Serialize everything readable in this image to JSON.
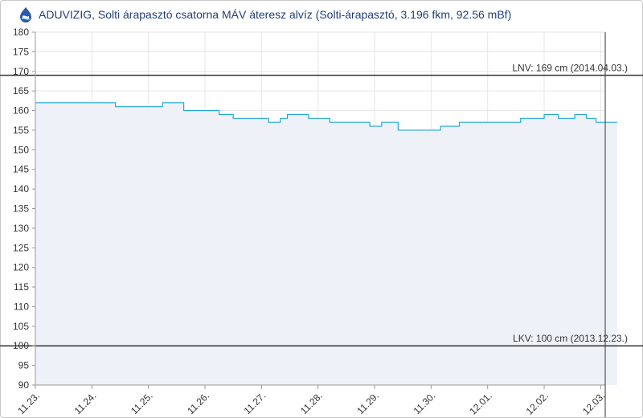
{
  "header": {
    "logo_icon": "aduvizig-water-drop-icon",
    "title": "ADUVIZIG, Solti árapasztó csatorna MÁV áteresz alvíz (Solti-árapasztó, 3.196 fkm, 92.56 mBf)"
  },
  "chart_data": {
    "type": "line",
    "title": "ADUVIZIG, Solti árapasztó csatorna MÁV áteresz alvíz (Solti-árapasztó, 3.196 fkm, 92.56 mBf)",
    "xlabel": "",
    "ylabel": "",
    "ylim": [
      90,
      180
    ],
    "yticks": [
      90,
      95,
      100,
      105,
      110,
      115,
      120,
      125,
      130,
      135,
      140,
      145,
      150,
      155,
      160,
      165,
      170,
      175,
      180
    ],
    "xlim": [
      "11.23.",
      "12.03.+0.08"
    ],
    "xticks": [
      "11.23.",
      "11.24.",
      "11.25.",
      "11.26.",
      "11.27.",
      "11.28.",
      "11.29.",
      "11.30.",
      "12.01.",
      "12.02.",
      "12.03."
    ],
    "grid": true,
    "colors": {
      "line": "#1fa8d6",
      "area": "#eef1f7",
      "ref_line": "#333333",
      "grid": "#e6e6e6"
    },
    "reference_lines": [
      {
        "value": 169,
        "label": "LNV: 169 cm (2014.04.03.)"
      },
      {
        "value": 100,
        "label": "LKV: 100 cm (2013.12.23.)"
      }
    ],
    "series": [
      {
        "name": "",
        "x": [
          "11.23.",
          "11.24. 06:00",
          "11.24. 10:00",
          "11.25. 06:00",
          "11.25. 09:00",
          "11.25. 15:00",
          "11.26. 06:00",
          "11.26. 12:00",
          "11.27. 03:00",
          "11.27. 08:00",
          "11.27. 11:00",
          "11.27. 20:00",
          "11.28. 05:00",
          "11.28. 16:00",
          "11.28. 22:00",
          "11.29. 03:00",
          "11.29. 10:00",
          "11.30. 04:00",
          "11.30. 12:00",
          "12.01. 06:00",
          "12.01. 14:00",
          "12.02. 00:00",
          "12.02. 06:00",
          "12.02. 13:00",
          "12.02. 18:00",
          "12.02. 22:00",
          "12.03. 07:00"
        ],
        "y": [
          162,
          162,
          161,
          162,
          162,
          160,
          159,
          158,
          157,
          158,
          159,
          158,
          157,
          157,
          156,
          157,
          155,
          156,
          157,
          157,
          158,
          159,
          158,
          159,
          158,
          157,
          157
        ]
      }
    ]
  }
}
